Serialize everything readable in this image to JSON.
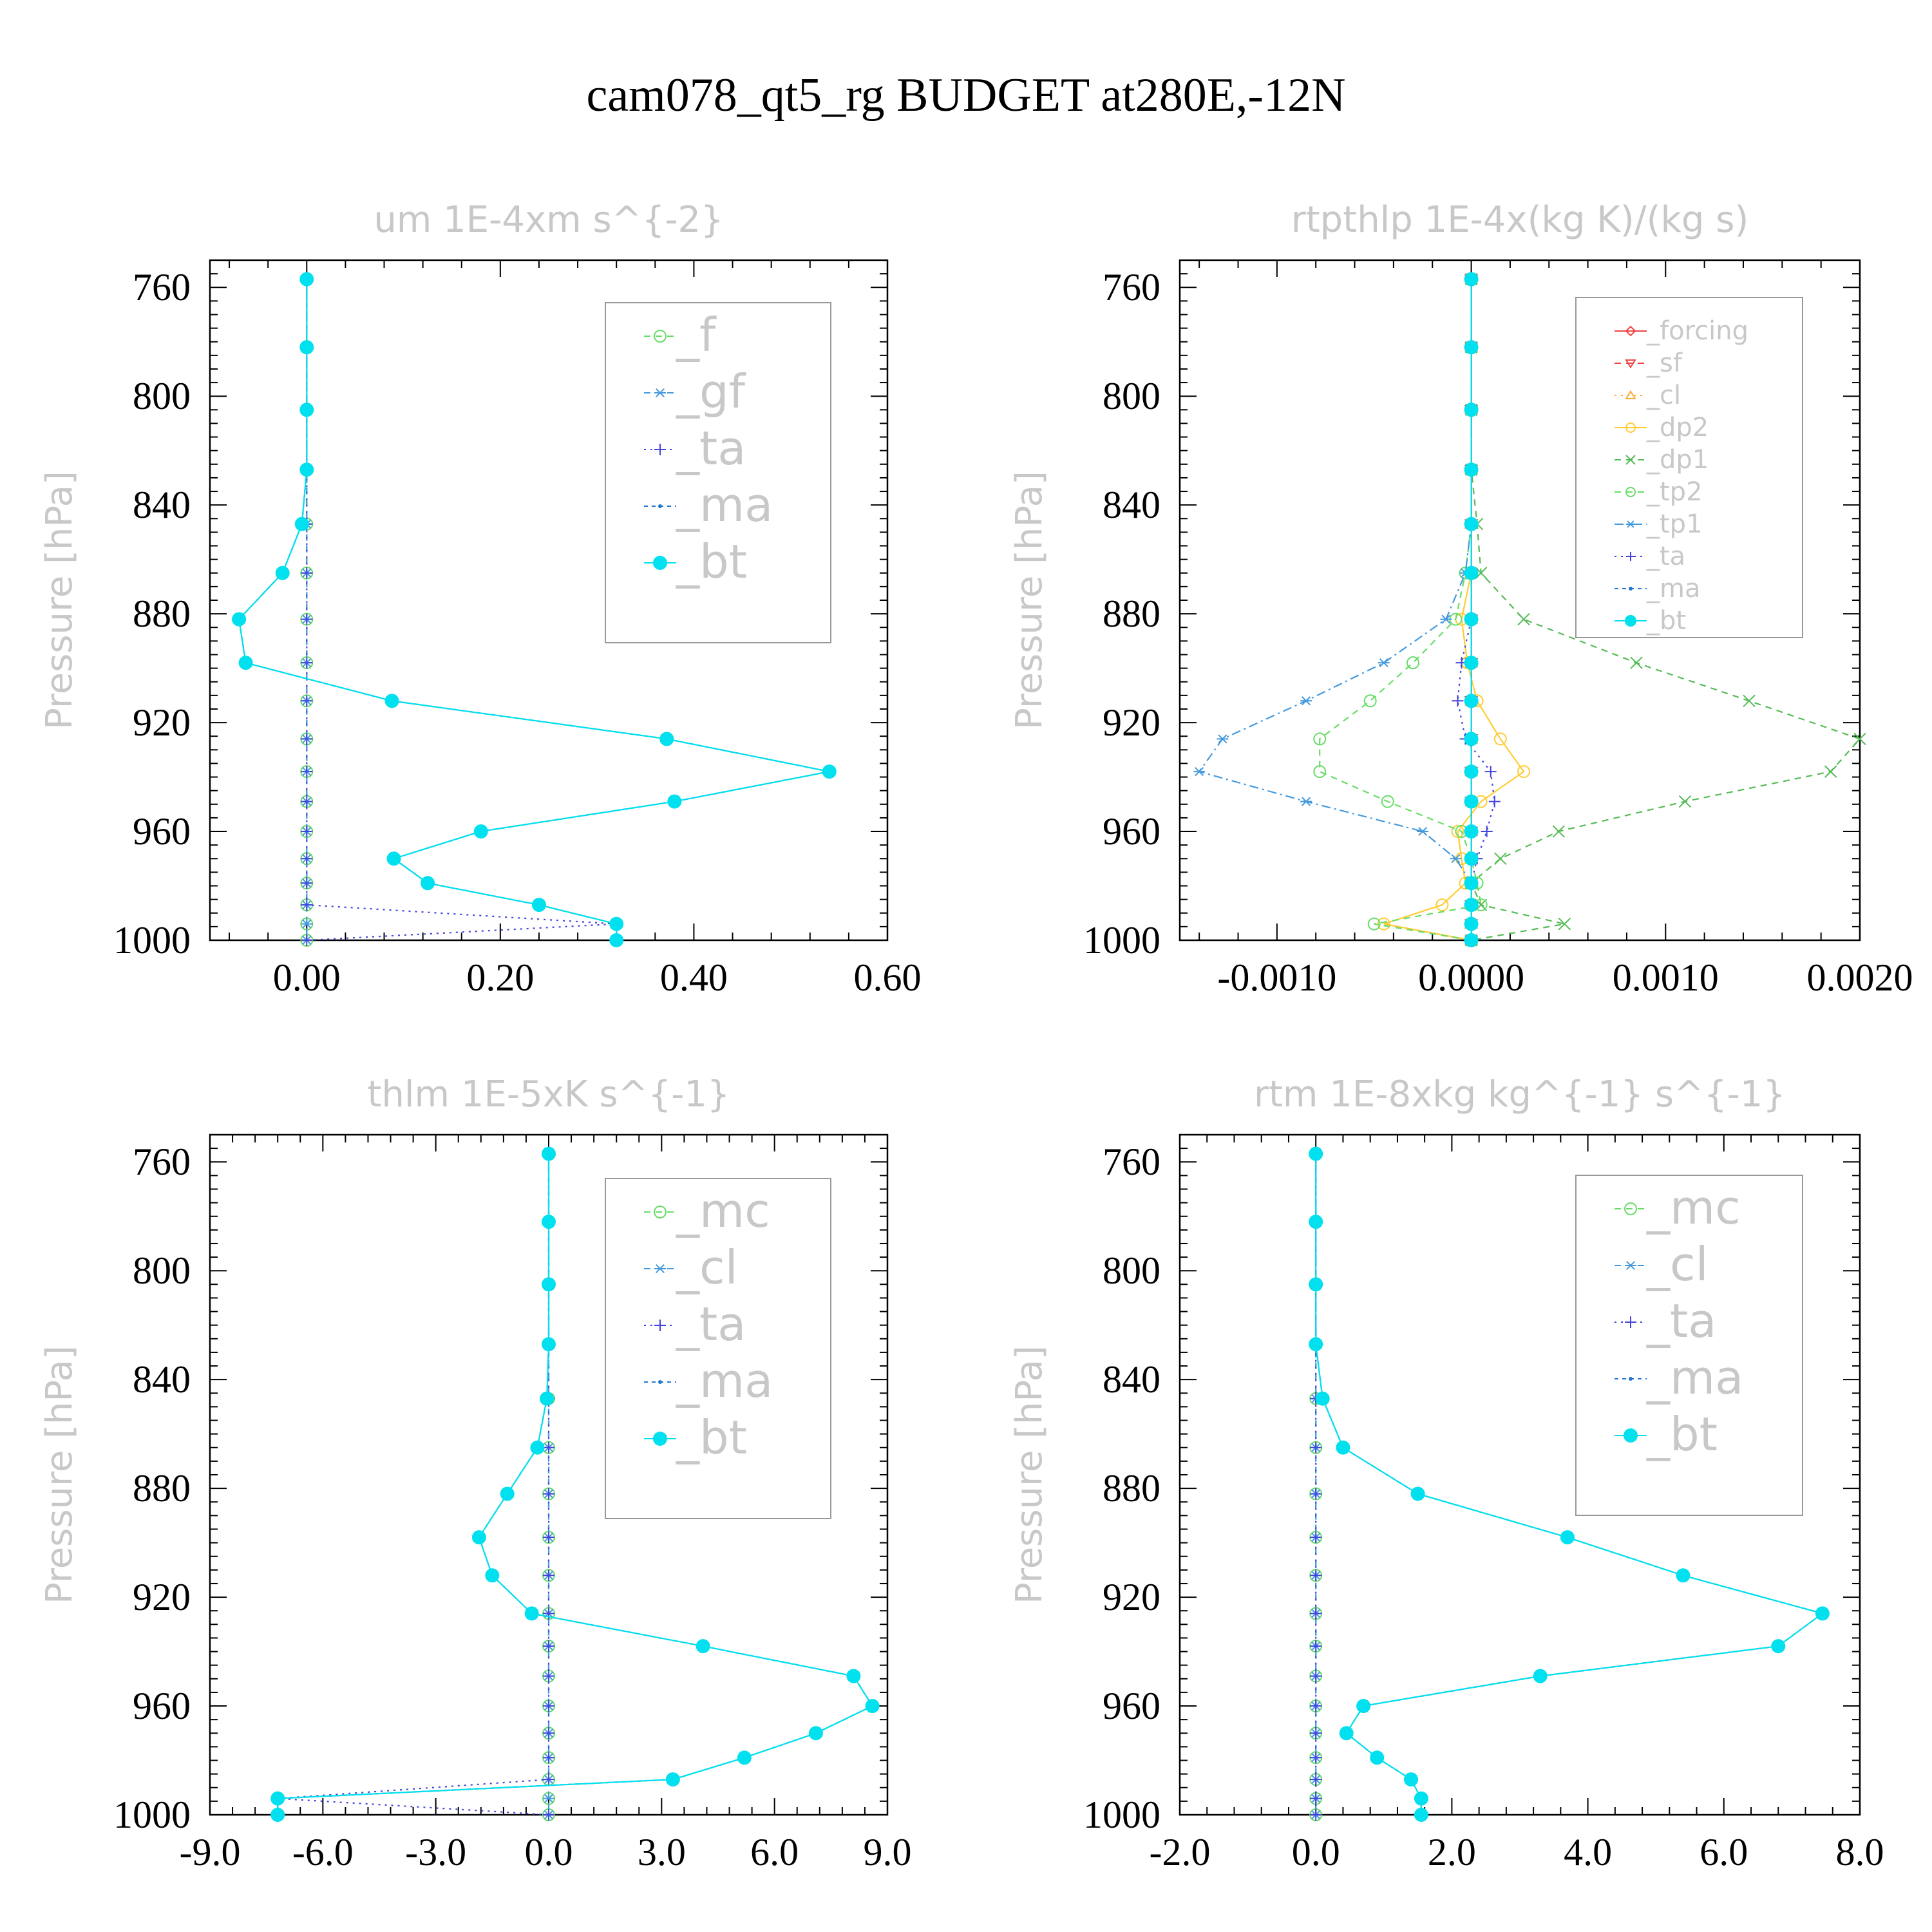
{
  "title": "cam078_qt5_rg  BUDGET at280E,-12N",
  "chart_data": [
    {
      "type": "line",
      "title": "um   1E-4xm s^{-2}",
      "ylabel": "Pressure [hPa]",
      "xlabel": "",
      "xlim": [
        -0.1,
        0.6
      ],
      "ylim": [
        1000,
        750
      ],
      "xticks": [
        0.0,
        0.2,
        0.4,
        0.6
      ],
      "xtick_labels": [
        "0.00",
        "0.20",
        "0.40",
        "0.60"
      ],
      "yticks": [
        760,
        800,
        840,
        880,
        920,
        960,
        1000
      ],
      "ytick_labels": [
        "760",
        "800",
        "840",
        "880",
        "920",
        "960",
        "1000"
      ],
      "legend_position": "top-right",
      "levels": [
        757,
        782,
        805,
        827,
        847,
        865,
        882,
        898,
        912,
        926,
        938,
        949,
        960,
        970,
        979,
        987,
        994,
        1000
      ],
      "series": [
        {
          "name": "_f",
          "color": "#66dd66",
          "marker": "circle-open",
          "dash": "10,8",
          "values": [
            0,
            0,
            0,
            0,
            0,
            0,
            0,
            0,
            0,
            0,
            0,
            0,
            0,
            0,
            0,
            0,
            0,
            0
          ]
        },
        {
          "name": "_gf",
          "color": "#4499dd",
          "marker": "asterisk",
          "dash": "10,8",
          "values": [
            0,
            0,
            0,
            0,
            0,
            0,
            0,
            0,
            0,
            0,
            0,
            0,
            0,
            0,
            0,
            0,
            0,
            0
          ]
        },
        {
          "name": "_ta",
          "color": "#4444dd",
          "marker": "plus",
          "dash": "3,7",
          "values": [
            0,
            0,
            0,
            0,
            0,
            0,
            0,
            0,
            0,
            0,
            0,
            0,
            0,
            0,
            0,
            0,
            0.32,
            0
          ]
        },
        {
          "name": "_ma",
          "color": "#2277cc",
          "marker": "dot",
          "dash": "6,6",
          "values": [
            0,
            0,
            0,
            0,
            -0.005,
            -0.025,
            -0.07,
            -0.063,
            0.088,
            0.372,
            0.54,
            0.38,
            0.18,
            0.09,
            0.125,
            0.24,
            0.32,
            0.32
          ]
        },
        {
          "name": "_bt",
          "color": "#00e0ee",
          "marker": "filled-circle",
          "dash": "",
          "values": [
            0,
            0,
            0,
            0,
            -0.005,
            -0.025,
            -0.07,
            -0.063,
            0.088,
            0.372,
            0.54,
            0.38,
            0.18,
            0.09,
            0.125,
            0.24,
            0.32,
            0.32
          ]
        }
      ]
    },
    {
      "type": "line",
      "title": "rtpthlp   1E-4x(kg K)/(kg s)",
      "ylabel": "Pressure [hPa]",
      "xlabel": "",
      "xlim": [
        -0.0015,
        0.002
      ],
      "ylim": [
        1000,
        750
      ],
      "xticks": [
        -0.001,
        0.0,
        0.001,
        0.002
      ],
      "xtick_labels": [
        "-0.0010",
        "0.0000",
        "0.0010",
        "0.0020"
      ],
      "yticks": [
        760,
        800,
        840,
        880,
        920,
        960,
        1000
      ],
      "ytick_labels": [
        "760",
        "800",
        "840",
        "880",
        "920",
        "960",
        "1000"
      ],
      "legend_position": "top-right",
      "levels": [
        757,
        782,
        805,
        827,
        847,
        865,
        882,
        898,
        912,
        926,
        938,
        949,
        960,
        970,
        979,
        987,
        994,
        1000
      ],
      "series": [
        {
          "name": "_forcing",
          "color": "#ee4444",
          "marker": "diamond",
          "dash": "",
          "values": [
            0,
            0,
            0,
            0,
            0,
            0,
            0,
            0,
            0,
            0,
            0,
            0,
            0,
            0,
            0,
            0,
            0,
            0
          ]
        },
        {
          "name": "_sf",
          "color": "#ee4444",
          "marker": "triangle-down",
          "dash": "10,8",
          "values": [
            0,
            0,
            0,
            0,
            0,
            0,
            0,
            0,
            0,
            0,
            0,
            0,
            0,
            0,
            0,
            0,
            0,
            0
          ]
        },
        {
          "name": "_cl",
          "color": "#ffaa33",
          "marker": "triangle-up",
          "dash": "3,7",
          "values": [
            0,
            0,
            0,
            0,
            0,
            0,
            0,
            0,
            0,
            0,
            0,
            0,
            0,
            0,
            0,
            0,
            0,
            0
          ]
        },
        {
          "name": "_dp2",
          "color": "#ffcc33",
          "marker": "circle-open",
          "dash": "",
          "values": [
            0,
            0,
            0,
            0,
            0,
            0,
            -5e-05,
            -2e-05,
            3e-05,
            0.00015,
            0.00027,
            5e-05,
            -7e-05,
            -5e-05,
            -3e-05,
            -0.00015,
            -0.00045,
            0
          ]
        },
        {
          "name": "_dp1",
          "color": "#55bb55",
          "marker": "x",
          "dash": "10,8",
          "values": [
            0,
            0,
            0,
            0,
            3e-05,
            5e-05,
            0.00027,
            0.00085,
            0.00143,
            0.002,
            0.00185,
            0.0011,
            0.00045,
            0.00015,
            0.0,
            5e-05,
            0.00048,
            0
          ]
        },
        {
          "name": "_tp2",
          "color": "#66dd66",
          "marker": "circle-open",
          "dash": "10,8",
          "values": [
            0,
            0,
            0,
            0,
            0,
            -3e-05,
            -8e-05,
            -0.0003,
            -0.00052,
            -0.00078,
            -0.00078,
            -0.00043,
            -5e-05,
            0.0,
            3e-05,
            5e-05,
            -0.0005,
            0
          ]
        },
        {
          "name": "_tp1",
          "color": "#4499dd",
          "marker": "asterisk",
          "dash": "14,6,3,6",
          "values": [
            0,
            0,
            0,
            0,
            0,
            -3e-05,
            -0.00013,
            -0.00045,
            -0.00085,
            -0.00128,
            -0.0014,
            -0.00085,
            -0.00025,
            -8e-05,
            0.0,
            0.0,
            0.0,
            0
          ]
        },
        {
          "name": "_ta",
          "color": "#4444dd",
          "marker": "plus",
          "dash": "3,7",
          "values": [
            0,
            0,
            0,
            0,
            0,
            0,
            0,
            -5e-05,
            -7e-05,
            -3e-05,
            0.0001,
            0.00012,
            8e-05,
            3e-05,
            0,
            0,
            0,
            0
          ]
        },
        {
          "name": "_ma",
          "color": "#2277cc",
          "marker": "dot",
          "dash": "6,6",
          "values": [
            0,
            0,
            0,
            0,
            0,
            0,
            0,
            0,
            0,
            0,
            0,
            0,
            0,
            0,
            0,
            0,
            0,
            0
          ]
        },
        {
          "name": "_bt",
          "color": "#00e0ee",
          "marker": "filled-circle",
          "dash": "",
          "values": [
            0,
            0,
            0,
            0,
            0,
            0,
            0,
            0,
            0,
            0,
            0,
            0,
            0,
            0,
            0,
            0,
            0,
            0
          ]
        }
      ]
    },
    {
      "type": "line",
      "title": "thlm   1E-5xK s^{-1}",
      "ylabel": "Pressure [hPa]",
      "xlabel": "",
      "xlim": [
        -9,
        9
      ],
      "ylim": [
        1000,
        750
      ],
      "xticks": [
        -9,
        -6,
        -3,
        0,
        3,
        6,
        9
      ],
      "xtick_labels": [
        "-9.0",
        "-6.0",
        "-3.0",
        "0.0",
        "3.0",
        "6.0",
        "9.0"
      ],
      "yticks": [
        760,
        800,
        840,
        880,
        920,
        960,
        1000
      ],
      "ytick_labels": [
        "760",
        "800",
        "840",
        "880",
        "920",
        "960",
        "1000"
      ],
      "legend_position": "top-right",
      "levels": [
        757,
        782,
        805,
        827,
        847,
        865,
        882,
        898,
        912,
        926,
        938,
        949,
        960,
        970,
        979,
        987,
        994,
        1000
      ],
      "series": [
        {
          "name": "_mc",
          "color": "#66dd66",
          "marker": "circle-open",
          "dash": "10,8",
          "values": [
            0,
            0,
            0,
            0,
            0,
            0,
            0,
            0,
            0,
            0,
            0,
            0,
            0,
            0,
            0,
            0,
            0,
            0
          ]
        },
        {
          "name": "_cl",
          "color": "#4499dd",
          "marker": "asterisk",
          "dash": "10,8",
          "values": [
            0,
            0,
            0,
            0,
            0,
            0,
            0,
            0,
            0,
            0,
            0,
            0,
            0,
            0,
            0,
            0,
            0,
            0
          ]
        },
        {
          "name": "_ta",
          "color": "#4444dd",
          "marker": "plus",
          "dash": "3,7",
          "values": [
            0,
            0,
            0,
            0,
            0,
            0,
            0,
            0,
            0,
            0,
            0,
            0,
            0,
            0,
            0,
            0,
            -7.2,
            0
          ]
        },
        {
          "name": "_ma",
          "color": "#2277cc",
          "marker": "dot",
          "dash": "6,6",
          "values": [
            0,
            0,
            0,
            0,
            -0.05,
            -0.3,
            -1.1,
            -1.85,
            -1.5,
            -0.45,
            4.1,
            8.1,
            8.6,
            7.1,
            5.2,
            3.3,
            -7.2,
            -7.2
          ]
        },
        {
          "name": "_bt",
          "color": "#00e0ee",
          "marker": "filled-circle",
          "dash": "",
          "values": [
            0,
            0,
            0,
            0,
            -0.05,
            -0.3,
            -1.1,
            -1.85,
            -1.5,
            -0.45,
            4.1,
            8.1,
            8.6,
            7.1,
            5.2,
            3.3,
            -7.2,
            -7.2
          ]
        }
      ]
    },
    {
      "type": "line",
      "title": "rtm   1E-8xkg kg^{-1} s^{-1}",
      "ylabel": "Pressure [hPa]",
      "xlabel": "",
      "xlim": [
        -2,
        8
      ],
      "ylim": [
        1000,
        750
      ],
      "xticks": [
        -2,
        0,
        2,
        4,
        6,
        8
      ],
      "xtick_labels": [
        "-2.0",
        "0.0",
        "2.0",
        "4.0",
        "6.0",
        "8.0"
      ],
      "yticks": [
        760,
        800,
        840,
        880,
        920,
        960,
        1000
      ],
      "ytick_labels": [
        "760",
        "800",
        "840",
        "880",
        "920",
        "960",
        "1000"
      ],
      "legend_position": "top-right",
      "levels": [
        757,
        782,
        805,
        827,
        847,
        865,
        882,
        898,
        912,
        926,
        938,
        949,
        960,
        970,
        979,
        987,
        994,
        1000
      ],
      "series": [
        {
          "name": "_mc",
          "color": "#66dd66",
          "marker": "circle-open",
          "dash": "10,8",
          "values": [
            0,
            0,
            0,
            0,
            0,
            0,
            0,
            0,
            0,
            0,
            0,
            0,
            0,
            0,
            0,
            0,
            0,
            0
          ]
        },
        {
          "name": "_cl",
          "color": "#4499dd",
          "marker": "asterisk",
          "dash": "10,8",
          "values": [
            0,
            0,
            0,
            0,
            0,
            0,
            0,
            0,
            0,
            0,
            0,
            0,
            0,
            0,
            0,
            0,
            0,
            0
          ]
        },
        {
          "name": "_ta",
          "color": "#4444dd",
          "marker": "plus",
          "dash": "3,7",
          "values": [
            0,
            0,
            0,
            0,
            0,
            0,
            0,
            0,
            0,
            0,
            0,
            0,
            0,
            0,
            0,
            0,
            0,
            0
          ]
        },
        {
          "name": "_ma",
          "color": "#2277cc",
          "marker": "dot",
          "dash": "6,6",
          "values": [
            0,
            0,
            0,
            0,
            0.1,
            0.4,
            1.5,
            3.7,
            5.4,
            7.45,
            6.8,
            3.3,
            0.7,
            0.45,
            0.9,
            1.4,
            1.55,
            1.55
          ]
        },
        {
          "name": "_bt",
          "color": "#00e0ee",
          "marker": "filled-circle",
          "dash": "",
          "values": [
            0,
            0,
            0,
            0,
            0.1,
            0.4,
            1.5,
            3.7,
            5.4,
            7.45,
            6.8,
            3.3,
            0.7,
            0.45,
            0.9,
            1.4,
            1.55,
            1.55
          ]
        }
      ]
    }
  ]
}
